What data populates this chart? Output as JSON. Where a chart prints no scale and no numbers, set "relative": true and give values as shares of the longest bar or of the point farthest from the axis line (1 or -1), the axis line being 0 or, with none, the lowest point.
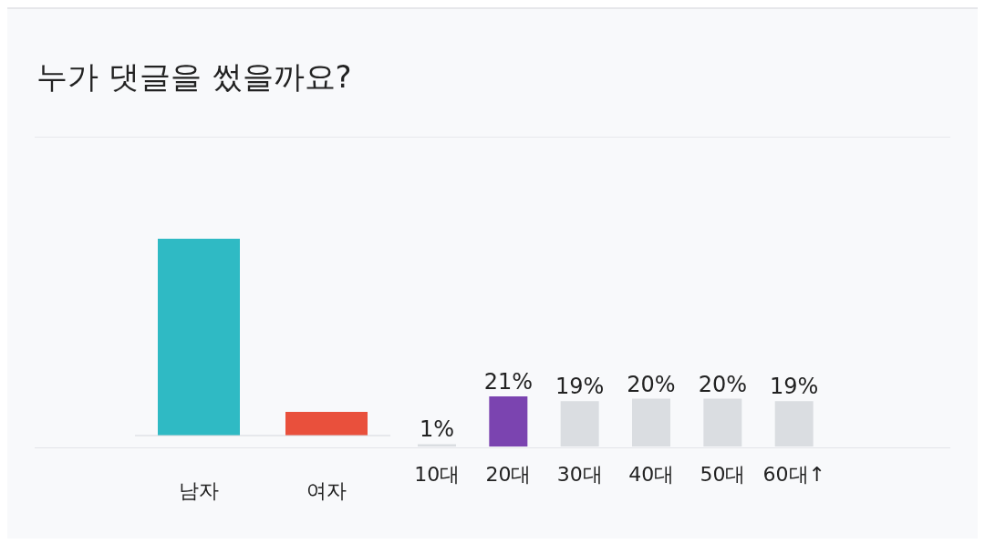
{
  "chart_data": [
    {
      "type": "bar",
      "title": "누가 댓글을 썼을까요?",
      "categories": [
        "남자",
        "여자"
      ],
      "values": [
        1,
        0.12
      ],
      "colors": [
        "#2fbac4",
        "#e9503c"
      ],
      "relative": true
    },
    {
      "type": "bar",
      "categories": [
        "10대",
        "20대",
        "30대",
        "40대",
        "50대",
        "60대↑"
      ],
      "values": [
        1,
        21,
        19,
        20,
        20,
        19
      ],
      "colors": [
        "#dadde1",
        "#7b44b0",
        "#dadde1",
        "#dadde1",
        "#dadde1",
        "#dadde1"
      ],
      "value_labels": [
        "1%",
        "21%",
        "19%",
        "20%",
        "20%",
        "19%"
      ]
    }
  ]
}
